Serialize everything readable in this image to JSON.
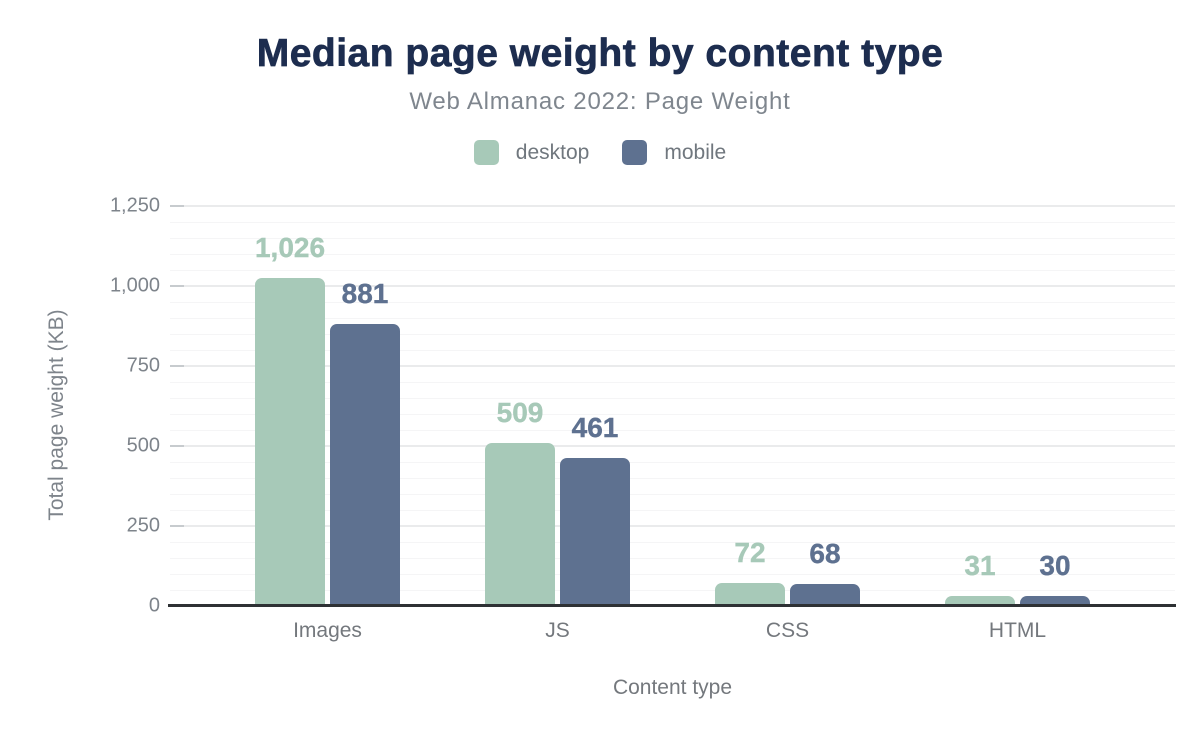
{
  "title": "Median page weight by content type",
  "subtitle": "Web Almanac 2022: Page Weight",
  "legend": [
    {
      "label": "desktop",
      "color": "#a7c9b8"
    },
    {
      "label": "mobile",
      "color": "#5e7190"
    }
  ],
  "colors": {
    "title": "#1d2d4f",
    "subtitle": "#7f868e",
    "axis_text": "#7e848b",
    "desktop_series": "#a7c9b8",
    "mobile_series": "#5e7190",
    "major_gridline": "#eaebec",
    "minor_gridline": "#f5f5f6",
    "baseline": "#2e3134"
  },
  "chart_data": {
    "type": "bar",
    "title": "Median page weight by content type",
    "subtitle": "Web Almanac 2022: Page Weight",
    "categories": [
      "Images",
      "JS",
      "CSS",
      "HTML"
    ],
    "series": [
      {
        "name": "desktop",
        "color": "#a7c9b8",
        "values": [
          1026,
          509,
          72,
          31
        ],
        "labels": [
          "1,026",
          "509",
          "72",
          "31"
        ]
      },
      {
        "name": "mobile",
        "color": "#5e7190",
        "values": [
          881,
          461,
          68,
          30
        ],
        "labels": [
          "881",
          "461",
          "68",
          "30"
        ]
      }
    ],
    "xlabel": "Content type",
    "ylabel": "Total page weight (KB)",
    "ylim": [
      0,
      1250
    ],
    "yticks": [
      0,
      250,
      500,
      750,
      1000,
      1250
    ],
    "ytick_labels": [
      "0",
      "250",
      "500",
      "750",
      "1,000",
      "1,250"
    ],
    "minor_tick_step": 50,
    "grid": "horizontal",
    "legend_position": "top"
  }
}
